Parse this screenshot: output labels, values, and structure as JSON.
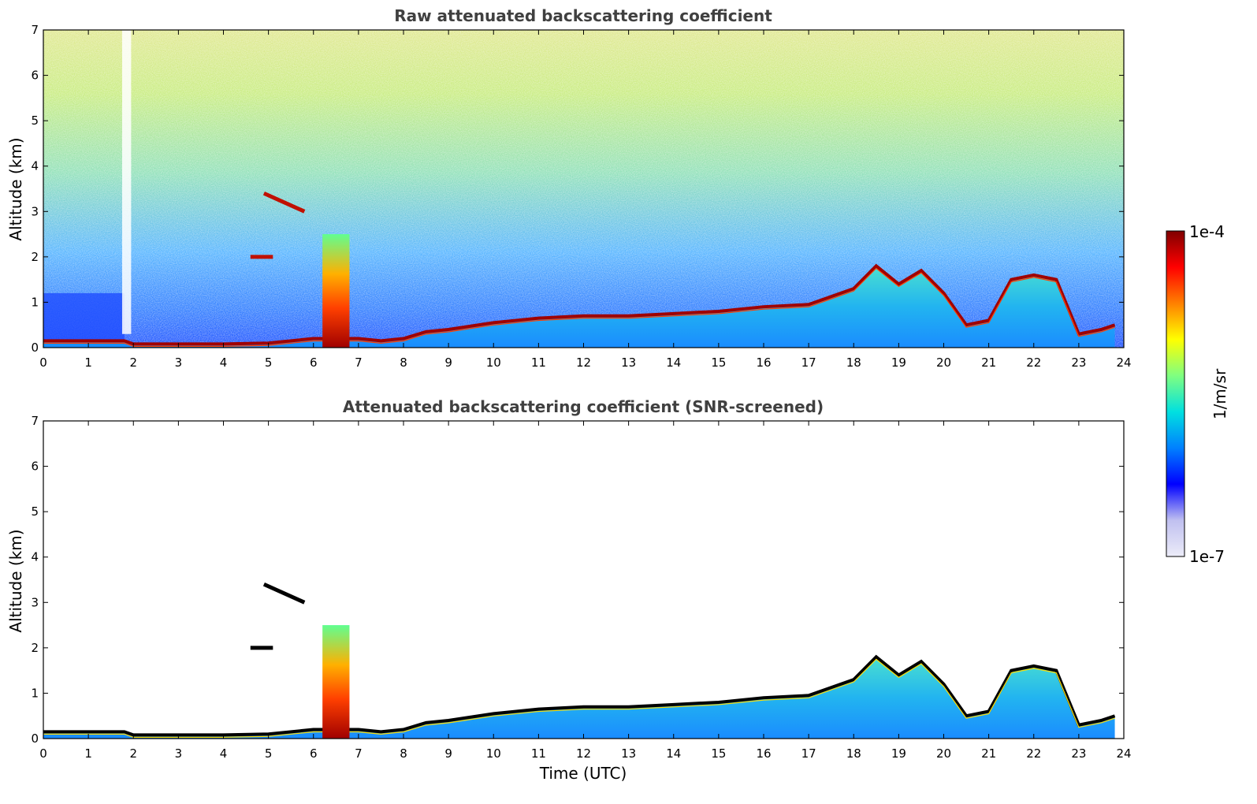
{
  "chart_data": [
    {
      "type": "heatmap",
      "title": "Raw attenuated backscattering coefficient",
      "xlabel": "",
      "ylabel": "Altitude (km)",
      "xlim": [
        0,
        24
      ],
      "ylim": [
        0,
        7
      ],
      "xticks": [
        0,
        1,
        2,
        3,
        4,
        5,
        6,
        7,
        8,
        9,
        10,
        11,
        12,
        13,
        14,
        15,
        16,
        17,
        18,
        19,
        20,
        21,
        22,
        23,
        24
      ],
      "yticks": [
        0,
        1,
        2,
        3,
        4,
        5,
        6,
        7
      ],
      "noise_floor": true,
      "boundary_layer_top_km": [
        [
          0,
          0.15
        ],
        [
          1.8,
          0.15
        ],
        [
          2,
          0.08
        ],
        [
          3,
          0.08
        ],
        [
          4,
          0.08
        ],
        [
          5,
          0.1
        ],
        [
          6,
          0.2
        ],
        [
          6.5,
          0.2
        ],
        [
          7,
          0.2
        ],
        [
          7.5,
          0.15
        ],
        [
          8,
          0.2
        ],
        [
          8.5,
          0.35
        ],
        [
          9,
          0.4
        ],
        [
          10,
          0.55
        ],
        [
          11,
          0.65
        ],
        [
          12,
          0.7
        ],
        [
          13,
          0.7
        ],
        [
          14,
          0.75
        ],
        [
          15,
          0.8
        ],
        [
          16,
          0.9
        ],
        [
          17,
          0.95
        ],
        [
          18,
          1.3
        ],
        [
          18.5,
          1.8
        ],
        [
          19,
          1.4
        ],
        [
          19.5,
          1.7
        ],
        [
          20,
          1.2
        ],
        [
          20.5,
          0.5
        ],
        [
          21,
          0.6
        ],
        [
          21.5,
          1.5
        ],
        [
          22,
          1.6
        ],
        [
          22.5,
          1.5
        ],
        [
          23,
          0.3
        ],
        [
          23.5,
          0.4
        ],
        [
          23.8,
          0.5
        ]
      ],
      "elevated_layers": [
        {
          "t0": 4.9,
          "t1": 5.8,
          "alt_km": [
            3.4,
            3.0
          ]
        },
        {
          "t0": 4.6,
          "t1": 5.1,
          "alt_km": [
            2.0,
            2.0
          ]
        }
      ],
      "precipitation": {
        "t0": 6.2,
        "t1": 6.8,
        "top_km": 2.5
      }
    },
    {
      "type": "heatmap",
      "title": "Attenuated backscattering coefficient (SNR-screened)",
      "xlabel": "Time (UTC)",
      "ylabel": "Altitude (km)",
      "xlim": [
        0,
        24
      ],
      "ylim": [
        0,
        7
      ],
      "xticks": [
        0,
        1,
        2,
        3,
        4,
        5,
        6,
        7,
        8,
        9,
        10,
        11,
        12,
        13,
        14,
        15,
        16,
        17,
        18,
        19,
        20,
        21,
        22,
        23,
        24
      ],
      "yticks": [
        0,
        1,
        2,
        3,
        4,
        5,
        6,
        7
      ],
      "noise_floor": false
    }
  ],
  "colorbar": {
    "label": "1/m/sr",
    "max_label": "1e-4",
    "min_label": "1e-7",
    "colormap": "jet",
    "colors": [
      "#ececf8",
      "#c0c0f0",
      "#0000ff",
      "#0080ff",
      "#00e0e0",
      "#80ff80",
      "#ffff00",
      "#ff8000",
      "#ff0000",
      "#800000"
    ]
  }
}
